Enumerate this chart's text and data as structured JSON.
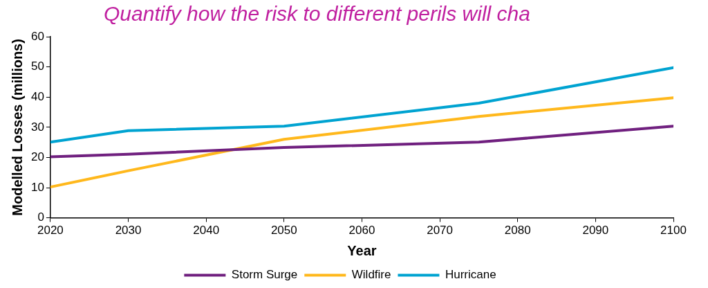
{
  "chart_data": {
    "type": "line",
    "title": "Quantify how the risk to different perils will cha",
    "xlabel": "Year",
    "ylabel": "Modelled Losses (millions)",
    "x": [
      2020,
      2030,
      2050,
      2075,
      2100
    ],
    "series": [
      {
        "name": "Storm Surge",
        "color": "#70207f",
        "values": [
          20.2,
          21.1,
          23.3,
          25.1,
          30.4
        ]
      },
      {
        "name": "Wildfire",
        "color": "#ffb81c",
        "values": [
          10.2,
          15.6,
          26,
          33.6,
          39.8
        ]
      },
      {
        "name": "Hurricane",
        "color": "#00a3d1",
        "values": [
          25.1,
          28.9,
          30.4,
          38,
          49.8
        ]
      }
    ],
    "xlim": [
      2020,
      2100
    ],
    "xticks": [
      2020,
      2030,
      2040,
      2050,
      2060,
      2070,
      2080,
      2090,
      2100
    ],
    "ylim": [
      0,
      60
    ],
    "yticks": [
      0,
      10,
      20,
      30,
      40,
      50,
      60
    ],
    "grid": false,
    "legend": "bottom",
    "marker": "none",
    "line_style": "solid"
  }
}
